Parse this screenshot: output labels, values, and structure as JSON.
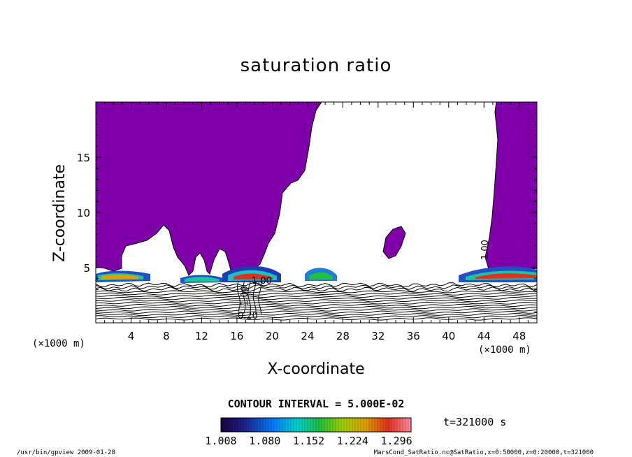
{
  "chart_data": {
    "type": "heatmap",
    "title": "saturation ratio",
    "xlabel": "X-coordinate",
    "ylabel": "Z-coordinate",
    "x_unit": "(×1000 m)",
    "y_unit": "(×1000 m)",
    "xlim": [
      0,
      50
    ],
    "ylim": [
      0,
      20
    ],
    "x_ticks": [
      "4",
      "8",
      "12",
      "16",
      "20",
      "24",
      "28",
      "32",
      "36",
      "40",
      "44",
      "48"
    ],
    "x_tick_values": [
      4,
      8,
      12,
      16,
      20,
      24,
      28,
      32,
      36,
      40,
      44,
      48
    ],
    "y_ticks": [
      "5",
      "10",
      "15"
    ],
    "y_tick_values": [
      5,
      10,
      15
    ],
    "contour_interval_label": "CONTOUR INTERVAL = 5.000E-02",
    "colorbar": {
      "min": 1.008,
      "max": 1.32,
      "tick_labels": [
        "1.008",
        "1.080",
        "1.152",
        "1.224",
        "1.296"
      ],
      "tick_values": [
        1.008,
        1.08,
        1.152,
        1.224,
        1.296
      ]
    },
    "time_label": "t=321000 s",
    "contour_labels": [
      "1.00",
      "0.20",
      "1.00",
      "1.00"
    ],
    "colors": {
      "supersaturated": "#7f00a8",
      "background": "#ffffff",
      "contour": "#000000"
    }
  },
  "footer": {
    "left": "/usr/bin/gpview   2009-01-28",
    "right": "MarsCond_SatRatio.nc@SatRatio,x=0:50000,z=0:20000,t=321000"
  }
}
